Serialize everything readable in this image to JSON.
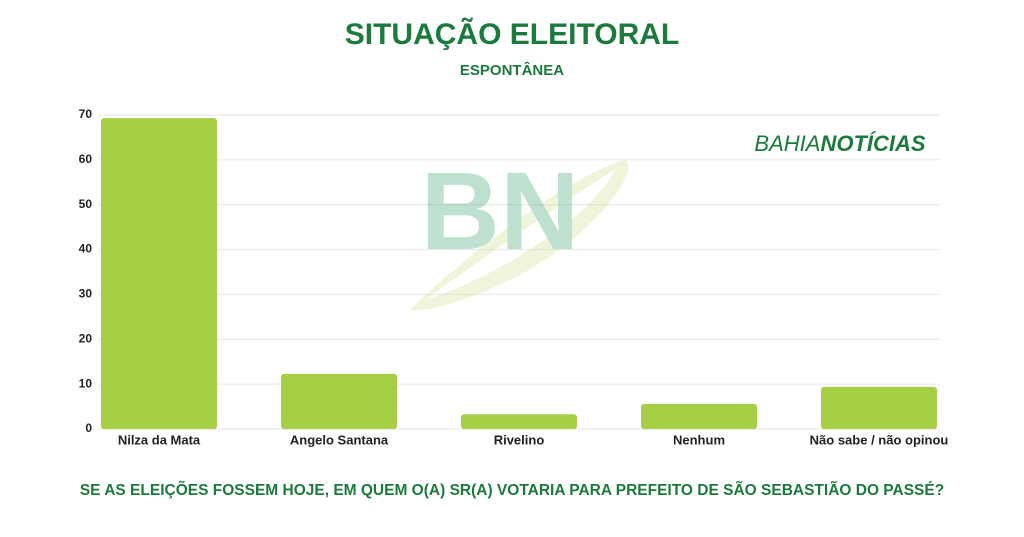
{
  "logo": "BN",
  "brand": [
    "BAHIA",
    "NOTÍCIAS"
  ],
  "chart_data": {
    "type": "bar",
    "title": "SITUAÇÃO ELEITORAL",
    "subtitle": "ESPONTÂNEA",
    "caption": "SE AS ELEIÇÕES FOSSEM HOJE, EM QUEM O(A) SR(A) VOTARIA PARA PREFEITO DE SÃO SEBASTIÃO DO PASSÉ?",
    "categories": [
      "Nilza da Mata",
      "Angelo Santana",
      "Rivelino",
      "Nenhum",
      "Não sabe / não opinou"
    ],
    "values": [
      69.3,
      12.3,
      3.3,
      5.6,
      9.4
    ],
    "color": "#a6cf45",
    "ylim": [
      0,
      70
    ],
    "yticks": [
      0,
      10,
      20,
      30,
      40,
      50,
      60,
      70
    ],
    "grid": true
  }
}
